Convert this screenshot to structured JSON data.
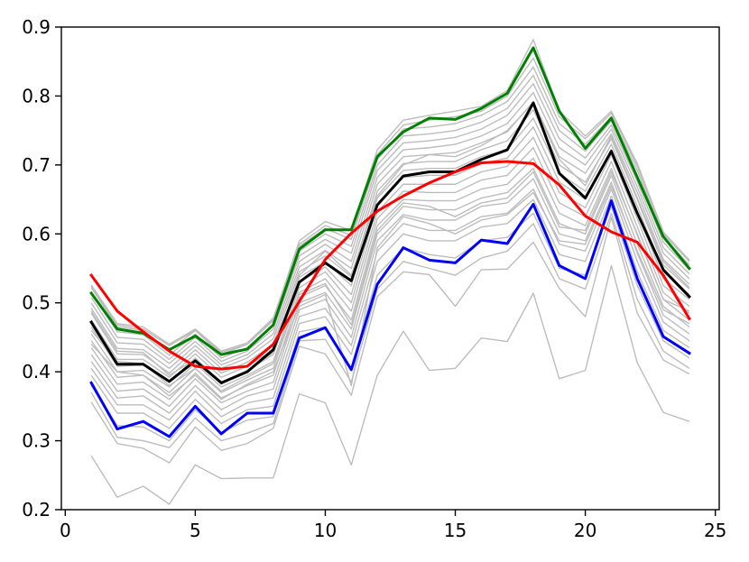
{
  "chart_data": {
    "type": "line",
    "title": "",
    "xlabel": "",
    "ylabel": "",
    "xlim": [
      -0.15,
      25.15
    ],
    "ylim": [
      0.2,
      0.9
    ],
    "grid": false,
    "x_ticks": [
      0,
      5,
      10,
      15,
      20,
      25
    ],
    "y_ticks": [
      0.2,
      0.3,
      0.4,
      0.5,
      0.6,
      0.7,
      0.8,
      0.9
    ],
    "x_tick_labels": [
      "0",
      "5",
      "10",
      "15",
      "20",
      "25"
    ],
    "y_tick_labels": [
      "0.2",
      "0.3",
      "0.4",
      "0.5",
      "0.6",
      "0.7",
      "0.8",
      "0.9"
    ],
    "x": [
      1,
      2,
      3,
      4,
      5,
      6,
      7,
      8,
      9,
      10,
      11,
      12,
      13,
      14,
      15,
      16,
      17,
      18,
      19,
      20,
      21,
      22,
      23,
      24
    ],
    "background_series": {
      "color": "#bdbdbd",
      "lines": [
        [
          0.278,
          0.218,
          0.234,
          0.208,
          0.265,
          0.245,
          0.246,
          0.246,
          0.368,
          0.355,
          0.265,
          0.395,
          0.459,
          0.402,
          0.405,
          0.449,
          0.444,
          0.514,
          0.39,
          0.402,
          0.554,
          0.413,
          0.341,
          0.328
        ],
        [
          0.356,
          0.296,
          0.289,
          0.268,
          0.32,
          0.286,
          0.296,
          0.318,
          0.437,
          0.426,
          0.366,
          0.509,
          0.545,
          0.541,
          0.495,
          0.548,
          0.549,
          0.588,
          0.521,
          0.48,
          0.624,
          0.485,
          0.417,
          0.397
        ],
        [
          0.37,
          0.305,
          0.3,
          0.29,
          0.333,
          0.3,
          0.311,
          0.325,
          0.445,
          0.447,
          0.385,
          0.52,
          0.56,
          0.55,
          0.54,
          0.565,
          0.575,
          0.615,
          0.535,
          0.52,
          0.63,
          0.505,
          0.43,
          0.405
        ],
        [
          0.38,
          0.322,
          0.32,
          0.3,
          0.345,
          0.312,
          0.33,
          0.335,
          0.458,
          0.465,
          0.405,
          0.54,
          0.58,
          0.57,
          0.565,
          0.59,
          0.595,
          0.63,
          0.55,
          0.54,
          0.64,
          0.525,
          0.445,
          0.42
        ],
        [
          0.395,
          0.34,
          0.34,
          0.318,
          0.36,
          0.325,
          0.345,
          0.35,
          0.47,
          0.48,
          0.425,
          0.56,
          0.6,
          0.59,
          0.59,
          0.61,
          0.615,
          0.65,
          0.57,
          0.56,
          0.655,
          0.545,
          0.46,
          0.435
        ],
        [
          0.405,
          0.352,
          0.352,
          0.33,
          0.372,
          0.335,
          0.355,
          0.362,
          0.48,
          0.492,
          0.438,
          0.575,
          0.615,
          0.605,
          0.605,
          0.625,
          0.63,
          0.665,
          0.585,
          0.575,
          0.665,
          0.56,
          0.472,
          0.445
        ],
        [
          0.415,
          0.362,
          0.365,
          0.34,
          0.38,
          0.345,
          0.365,
          0.375,
          0.49,
          0.505,
          0.45,
          0.59,
          0.628,
          0.62,
          0.62,
          0.64,
          0.645,
          0.68,
          0.6,
          0.59,
          0.675,
          0.572,
          0.482,
          0.455
        ],
        [
          0.425,
          0.372,
          0.375,
          0.35,
          0.39,
          0.355,
          0.372,
          0.385,
          0.5,
          0.515,
          0.462,
          0.6,
          0.64,
          0.635,
          0.635,
          0.652,
          0.66,
          0.695,
          0.615,
          0.6,
          0.685,
          0.585,
          0.495,
          0.465
        ],
        [
          0.435,
          0.382,
          0.385,
          0.36,
          0.398,
          0.362,
          0.38,
          0.395,
          0.508,
          0.525,
          0.475,
          0.612,
          0.65,
          0.648,
          0.648,
          0.665,
          0.672,
          0.71,
          0.63,
          0.612,
          0.695,
          0.598,
          0.505,
          0.475
        ],
        [
          0.445,
          0.392,
          0.395,
          0.37,
          0.405,
          0.37,
          0.388,
          0.405,
          0.515,
          0.535,
          0.488,
          0.622,
          0.662,
          0.66,
          0.66,
          0.678,
          0.685,
          0.725,
          0.645,
          0.625,
          0.705,
          0.61,
          0.515,
          0.485
        ],
        [
          0.455,
          0.4,
          0.402,
          0.378,
          0.412,
          0.378,
          0.395,
          0.415,
          0.522,
          0.545,
          0.5,
          0.632,
          0.672,
          0.672,
          0.672,
          0.69,
          0.698,
          0.74,
          0.66,
          0.638,
          0.715,
          0.622,
          0.525,
          0.495
        ],
        [
          0.465,
          0.408,
          0.41,
          0.385,
          0.42,
          0.385,
          0.402,
          0.425,
          0.53,
          0.552,
          0.512,
          0.642,
          0.682,
          0.685,
          0.685,
          0.702,
          0.71,
          0.755,
          0.675,
          0.65,
          0.722,
          0.632,
          0.535,
          0.505
        ],
        [
          0.475,
          0.418,
          0.418,
          0.392,
          0.426,
          0.392,
          0.408,
          0.432,
          0.537,
          0.56,
          0.525,
          0.652,
          0.692,
          0.695,
          0.695,
          0.712,
          0.722,
          0.768,
          0.688,
          0.662,
          0.73,
          0.64,
          0.545,
          0.512
        ],
        [
          0.485,
          0.426,
          0.425,
          0.398,
          0.432,
          0.398,
          0.414,
          0.44,
          0.545,
          0.568,
          0.538,
          0.662,
          0.702,
          0.705,
          0.705,
          0.722,
          0.735,
          0.78,
          0.7,
          0.675,
          0.738,
          0.65,
          0.555,
          0.52
        ],
        [
          0.492,
          0.434,
          0.432,
          0.405,
          0.438,
          0.405,
          0.42,
          0.448,
          0.552,
          0.576,
          0.55,
          0.672,
          0.712,
          0.715,
          0.718,
          0.732,
          0.748,
          0.792,
          0.712,
          0.688,
          0.745,
          0.66,
          0.563,
          0.527
        ],
        [
          0.5,
          0.442,
          0.44,
          0.412,
          0.444,
          0.41,
          0.425,
          0.455,
          0.56,
          0.585,
          0.56,
          0.682,
          0.722,
          0.725,
          0.73,
          0.742,
          0.76,
          0.805,
          0.725,
          0.7,
          0.752,
          0.668,
          0.572,
          0.535
        ],
        [
          0.508,
          0.45,
          0.447,
          0.418,
          0.45,
          0.415,
          0.43,
          0.462,
          0.568,
          0.592,
          0.572,
          0.692,
          0.732,
          0.735,
          0.74,
          0.752,
          0.772,
          0.818,
          0.738,
          0.71,
          0.758,
          0.676,
          0.58,
          0.542
        ],
        [
          0.515,
          0.458,
          0.454,
          0.424,
          0.455,
          0.42,
          0.435,
          0.468,
          0.575,
          0.6,
          0.582,
          0.7,
          0.742,
          0.745,
          0.75,
          0.762,
          0.782,
          0.83,
          0.75,
          0.72,
          0.764,
          0.684,
          0.588,
          0.548
        ],
        [
          0.522,
          0.465,
          0.46,
          0.43,
          0.46,
          0.425,
          0.44,
          0.474,
          0.582,
          0.608,
          0.592,
          0.708,
          0.752,
          0.755,
          0.76,
          0.772,
          0.792,
          0.842,
          0.76,
          0.73,
          0.77,
          0.692,
          0.595,
          0.555
        ],
        [
          0.526,
          0.47,
          0.465,
          0.44,
          0.462,
          0.43,
          0.442,
          0.478,
          0.585,
          0.612,
          0.598,
          0.715,
          0.758,
          0.765,
          0.77,
          0.778,
          0.8,
          0.855,
          0.77,
          0.738,
          0.775,
          0.698,
          0.6,
          0.56
        ],
        [
          0.524,
          0.468,
          0.462,
          0.438,
          0.46,
          0.428,
          0.44,
          0.476,
          0.59,
          0.618,
          0.605,
          0.722,
          0.765,
          0.772,
          0.778,
          0.785,
          0.808,
          0.882,
          0.778,
          0.742,
          0.778,
          0.702,
          0.603,
          0.562
        ],
        [
          0.44,
          0.4,
          0.395,
          0.365,
          0.395,
          0.36,
          0.382,
          0.4,
          0.495,
          0.512,
          0.38,
          0.58,
          0.625,
          0.615,
          0.6,
          0.62,
          0.628,
          0.66,
          0.59,
          0.585,
          0.67,
          0.575,
          0.49,
          0.47
        ],
        [
          0.46,
          0.415,
          0.412,
          0.38,
          0.405,
          0.372,
          0.392,
          0.412,
          0.512,
          0.528,
          0.468,
          0.605,
          0.645,
          0.64,
          0.625,
          0.645,
          0.652,
          0.69,
          0.61,
          0.605,
          0.69,
          0.6,
          0.505,
          0.488
        ],
        [
          0.488,
          0.43,
          0.428,
          0.395,
          0.418,
          0.382,
          0.402,
          0.428,
          0.54,
          0.575,
          0.54,
          0.655,
          0.7,
          0.715,
          0.712,
          0.728,
          0.75,
          0.79,
          0.708,
          0.67,
          0.742,
          0.652,
          0.56,
          0.522
        ]
      ]
    },
    "series": [
      {
        "color": "#008000",
        "values": [
          0.514,
          0.462,
          0.456,
          0.432,
          0.452,
          0.425,
          0.433,
          0.468,
          0.578,
          0.606,
          0.606,
          0.712,
          0.748,
          0.768,
          0.766,
          0.782,
          0.804,
          0.87,
          0.778,
          0.724,
          0.768,
          0.682,
          0.596,
          0.55
        ]
      },
      {
        "color": "#000000",
        "values": [
          0.472,
          0.411,
          0.411,
          0.386,
          0.416,
          0.384,
          0.4,
          0.432,
          0.53,
          0.558,
          0.532,
          0.642,
          0.684,
          0.69,
          0.69,
          0.708,
          0.722,
          0.79,
          0.688,
          0.652,
          0.72,
          0.63,
          0.548,
          0.509
        ]
      },
      {
        "color": "#0000ff",
        "values": [
          0.384,
          0.317,
          0.328,
          0.306,
          0.35,
          0.31,
          0.34,
          0.34,
          0.449,
          0.464,
          0.403,
          0.527,
          0.58,
          0.562,
          0.558,
          0.591,
          0.586,
          0.643,
          0.554,
          0.535,
          0.648,
          0.535,
          0.451,
          0.427
        ]
      },
      {
        "color": "#ff0000",
        "values": [
          0.54,
          0.488,
          0.458,
          0.43,
          0.408,
          0.404,
          0.408,
          0.44,
          0.502,
          0.563,
          0.601,
          0.633,
          0.655,
          0.674,
          0.69,
          0.703,
          0.705,
          0.702,
          0.671,
          0.626,
          0.603,
          0.588,
          0.54,
          0.477
        ]
      }
    ]
  }
}
